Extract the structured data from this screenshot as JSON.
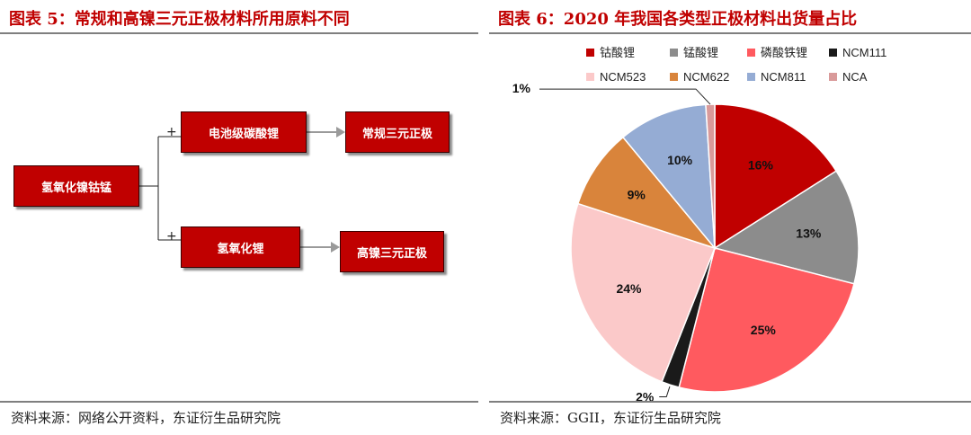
{
  "left": {
    "title": "图表 5：常规和高镍三元正极材料所用原料不同",
    "source": "资料来源：网络公开资料，东证衍生品研究院",
    "flow": {
      "root": "氢氧化镍钴锰",
      "plus_top": "+",
      "plus_bottom": "+",
      "mid_top": "电池级碳酸锂",
      "mid_bottom": "氢氧化锂",
      "out_top": "常规三元正极",
      "out_bottom": "高镍三元正极"
    }
  },
  "right": {
    "title": "图表 6：2020 年我国各类型正极材料出货量占比",
    "source": "资料来源：GGII，东证衍生品研究院"
  },
  "chart_data": {
    "type": "pie",
    "title": "图表 6：2020 年我国各类型正极材料出货量占比",
    "legend_placement": "top",
    "slices": [
      {
        "name": "钴酸锂",
        "value": 16,
        "label": "16%",
        "color": "#c00000"
      },
      {
        "name": "锰酸锂",
        "value": 13,
        "label": "13%",
        "color": "#8c8c8c"
      },
      {
        "name": "磷酸铁锂",
        "value": 25,
        "label": "25%",
        "color": "#ff5a5f"
      },
      {
        "name": "NCM111",
        "value": 2,
        "label": "2%",
        "color": "#1a1a1a"
      },
      {
        "name": "NCM523",
        "value": 24,
        "label": "24%",
        "color": "#fbc9c9"
      },
      {
        "name": "NCM622",
        "value": 9,
        "label": "9%",
        "color": "#d9843b"
      },
      {
        "name": "NCM811",
        "value": 10,
        "label": "10%",
        "color": "#95acd4"
      },
      {
        "name": "NCA",
        "value": 1,
        "label": "1%",
        "color": "#d99a9a"
      }
    ]
  }
}
